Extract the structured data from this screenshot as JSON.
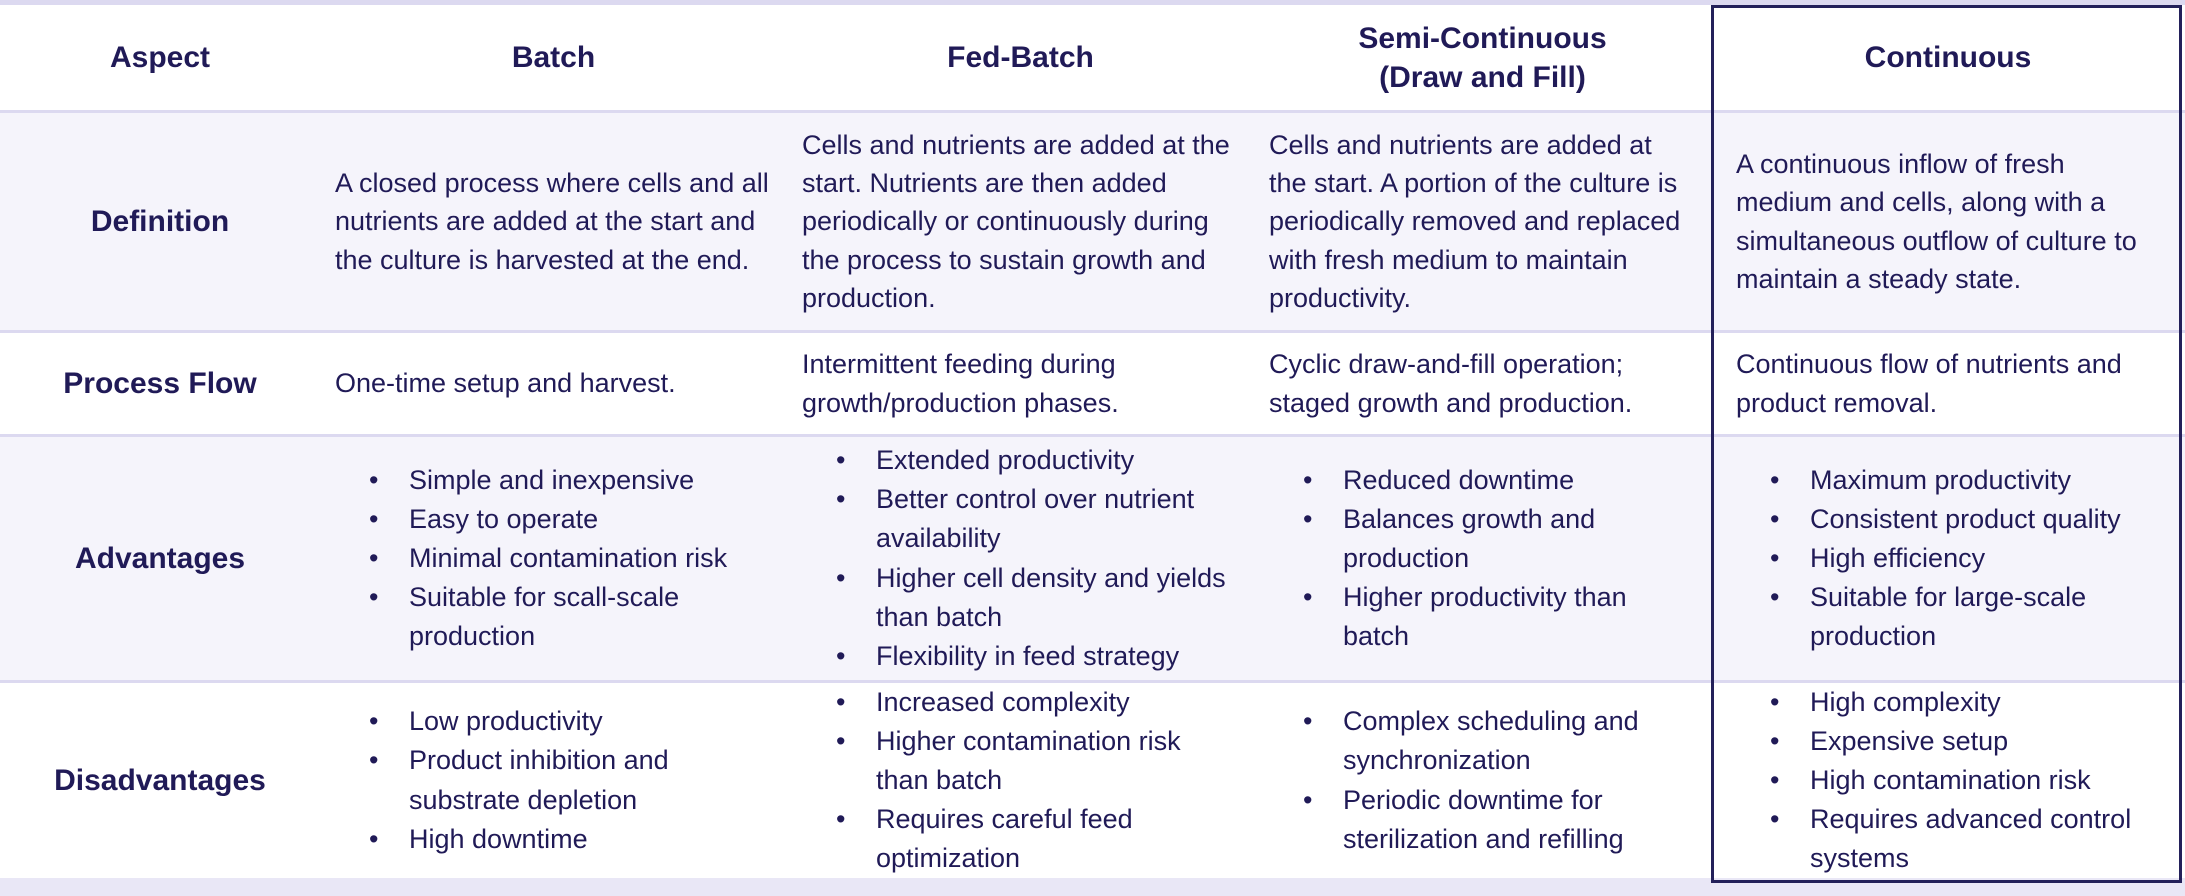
{
  "colors": {
    "text_navy": "#201a57",
    "row_shade": "#f5f4fb",
    "row_separator": "#dcd9f0",
    "highlight_border": "#23205a"
  },
  "table": {
    "headers": {
      "aspect": "Aspect",
      "batch": "Batch",
      "fed_batch": "Fed-Batch",
      "semi_continuous_line1": "Semi-Continuous",
      "semi_continuous_line2": "(Draw and Fill)",
      "continuous": "Continuous"
    },
    "rows": {
      "definition": {
        "label": "Definition",
        "batch": "A closed process where cells and all nutrients are added at the start and the culture is harvested at the end.",
        "fed_batch": "Cells and nutrients are added at the start. Nutrients are then added periodically or continuously during the process to sustain growth and production.",
        "semi_continuous": "Cells and nutrients are added at the start. A portion of the culture is periodically removed and replaced with fresh medium to maintain productivity.",
        "continuous": "A continuous inflow of fresh medium and cells, along with a simultaneous outflow of culture to maintain a steady state."
      },
      "process_flow": {
        "label": "Process Flow",
        "batch": "One-time setup and harvest.",
        "fed_batch": "Intermittent feeding during growth/production phases.",
        "semi_continuous": "Cyclic draw-and-fill operation; staged growth and production.",
        "continuous": "Continuous flow of nutrients and product removal."
      },
      "advantages": {
        "label": "Advantages",
        "batch": [
          "Simple and inexpensive",
          "Easy to operate",
          "Minimal contamination risk",
          "Suitable for scall-scale production"
        ],
        "fed_batch": [
          "Extended productivity",
          "Better control over nutrient availability",
          "Higher cell density and yields than batch",
          "Flexibility in feed strategy"
        ],
        "semi_continuous": [
          "Reduced downtime",
          "Balances growth and production",
          "Higher productivity than batch"
        ],
        "continuous": [
          "Maximum productivity",
          "Consistent product quality",
          "High efficiency",
          "Suitable for large-scale production"
        ]
      },
      "disadvantages": {
        "label": "Disadvantages",
        "batch": [
          "Low productivity",
          "Product inhibition and substrate depletion",
          "High downtime"
        ],
        "fed_batch": [
          "Increased complexity",
          "Higher contamination risk than batch",
          "Requires careful feed optimization"
        ],
        "semi_continuous": [
          "Complex scheduling and synchronization",
          "Periodic downtime for sterilization and refilling"
        ],
        "continuous": [
          "High complexity",
          "Expensive setup",
          "High contamination risk",
          "Requires advanced control systems"
        ]
      }
    }
  }
}
